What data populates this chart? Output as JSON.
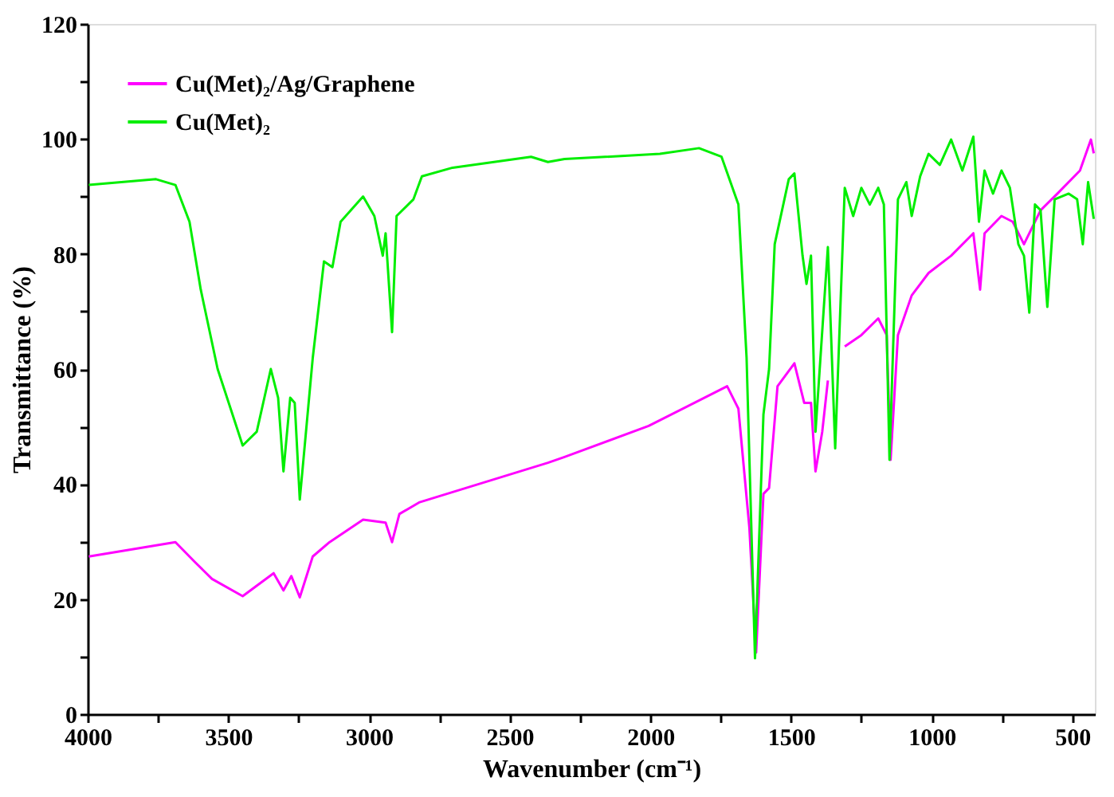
{
  "chart_data": {
    "type": "line",
    "xlabel": "Wavenumber (cm⁻¹)",
    "ylabel": "Transmittance (%)",
    "xlim": [
      4000,
      420
    ],
    "ylim": [
      0,
      120
    ],
    "xticks": [
      4000,
      {
        "value": 3750,
        "label": null
      },
      3500,
      {
        "value": 3250,
        "label": null
      },
      3000,
      {
        "value": 2750,
        "label": null
      },
      2500,
      {
        "value": 2250,
        "label": null
      },
      2000,
      {
        "value": 1750,
        "label": null
      },
      1500,
      {
        "value": 1250,
        "label": null
      },
      1000,
      {
        "value": 750,
        "label": null
      },
      500
    ],
    "yticks": [
      0,
      {
        "value": 10,
        "label": null
      },
      20,
      {
        "value": 30,
        "label": null
      },
      40,
      {
        "value": 50,
        "label": null
      },
      60,
      {
        "value": 70,
        "label": null
      },
      80,
      {
        "value": 90,
        "label": null
      },
      100,
      {
        "value": 110,
        "label": null
      },
      120
    ],
    "grid": false,
    "legend": "top left",
    "line_style": "solid",
    "marker": "none",
    "series": [
      {
        "name": "Cu(Met)₂/Ag/Graphene",
        "color": "#ff00ff",
        "x": [
          3996,
          3688,
          3618,
          3558,
          3449,
          3339,
          3304,
          3276,
          3246,
          3200,
          3140,
          3021,
          2941,
          2918,
          2892,
          2822,
          2364,
          2305,
          2006,
          1727,
          1687,
          1648,
          1624,
          1598,
          1578,
          1548,
          1488,
          1453,
          1429,
          1413,
          1389,
          1369,
          1343,
          1309,
          1250,
          1190,
          1160,
          1146,
          1120,
          1071,
          1011,
          931,
          852,
          828,
          812,
          752,
          712,
          672,
          613,
          553,
          473,
          434,
          424
        ],
        "values": [
          27.4,
          29.9,
          26.4,
          23.5,
          20.5,
          24.5,
          21.5,
          24.0,
          20.3,
          27.4,
          29.9,
          33.8,
          33.3,
          29.9,
          34.8,
          36.8,
          43.7,
          44.7,
          50.1,
          57.0,
          53.1,
          32.4,
          10.7,
          38.3,
          39.3,
          57.0,
          61.0,
          54.1,
          54.1,
          42.2,
          49.1,
          58.0,
          null,
          63.9,
          65.9,
          68.8,
          65.9,
          44.2,
          65.9,
          72.8,
          76.7,
          79.7,
          83.6,
          73.8,
          83.6,
          86.6,
          85.6,
          81.7,
          87.6,
          90.5,
          94.5,
          99.9,
          97.5
        ]
      },
      {
        "name": "Cu(Met)₂",
        "color": "#00ee00",
        "x": [
          3996,
          3757,
          3688,
          3638,
          3598,
          3538,
          3449,
          3399,
          3349,
          3323,
          3304,
          3280,
          3264,
          3246,
          3200,
          3160,
          3130,
          3101,
          3021,
          2981,
          2951,
          2941,
          2918,
          2902,
          2842,
          2812,
          2703,
          2424,
          2364,
          2305,
          1966,
          1827,
          1747,
          1687,
          1658,
          1628,
          1598,
          1578,
          1558,
          1508,
          1488,
          1459,
          1445,
          1429,
          1413,
          1369,
          1343,
          1309,
          1279,
          1250,
          1220,
          1190,
          1170,
          1150,
          1120,
          1090,
          1071,
          1041,
          1011,
          971,
          931,
          891,
          852,
          832,
          812,
          782,
          752,
          722,
          692,
          672,
          653,
          633,
          613,
          589,
          563,
          513,
          483,
          463,
          444,
          424
        ],
        "values": [
          92.0,
          93.0,
          92.0,
          85.6,
          73.8,
          60.0,
          46.7,
          49.1,
          60.0,
          55.0,
          42.2,
          55.0,
          54.1,
          37.3,
          61.9,
          78.7,
          77.7,
          85.6,
          90.0,
          86.6,
          79.7,
          83.6,
          66.4,
          86.6,
          89.5,
          93.5,
          95.0,
          96.9,
          96.0,
          96.5,
          97.4,
          98.4,
          96.9,
          88.6,
          62.0,
          9.7,
          52.1,
          60.0,
          81.7,
          93.0,
          94.0,
          79.7,
          74.8,
          79.7,
          49.1,
          81.2,
          46.2,
          91.5,
          86.6,
          91.5,
          88.6,
          91.5,
          88.6,
          44.2,
          89.5,
          92.5,
          86.6,
          93.5,
          97.4,
          95.5,
          99.9,
          94.5,
          100.4,
          85.6,
          94.5,
          90.5,
          94.5,
          91.5,
          81.7,
          79.7,
          69.8,
          88.6,
          87.6,
          70.8,
          89.5,
          90.5,
          89.5,
          81.7,
          92.5,
          86.1
        ]
      }
    ]
  }
}
